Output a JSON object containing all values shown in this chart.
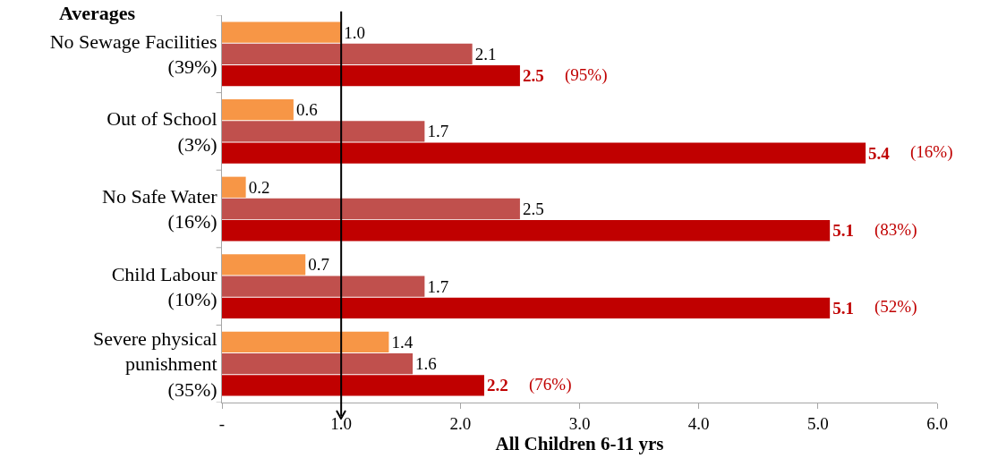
{
  "chart_data": {
    "type": "bar",
    "orientation": "horizontal",
    "title": "Averages",
    "xlabel": "All Children 6-11 yrs",
    "categories": [
      "No Sewage Facilities\n(39%)",
      "Out of School\n(3%)",
      "No Safe Water\n(16%)",
      "Child Labour\n(10%)",
      "Severe physical\npunishment\n(35%)"
    ],
    "series": [
      {
        "color": "#f79646",
        "values": [
          1.0,
          0.6,
          0.2,
          0.7,
          1.4
        ],
        "value_labels": [
          "1.0",
          "0.6",
          "0.2",
          "0.7",
          "1.4"
        ]
      },
      {
        "color": "#c0504d",
        "values": [
          2.1,
          1.7,
          2.5,
          1.7,
          1.6
        ],
        "value_labels": [
          "2.1",
          "1.7",
          "2.5",
          "1.7",
          "1.6"
        ]
      },
      {
        "color": "#c00000",
        "values": [
          2.5,
          5.4,
          5.1,
          5.1,
          2.2
        ],
        "value_labels": [
          "2.5",
          "5.4",
          "5.1",
          "5.1",
          "2.2"
        ]
      }
    ],
    "xlim": [
      0,
      6
    ],
    "xticks": [
      {
        "value": 0,
        "label": "-"
      },
      {
        "value": 1,
        "label": "1.0"
      },
      {
        "value": 2,
        "label": "2.0"
      },
      {
        "value": 3,
        "label": "3.0"
      },
      {
        "value": 4,
        "label": "4.0"
      },
      {
        "value": 5,
        "label": "5.0"
      },
      {
        "value": 6,
        "label": "6.0"
      }
    ],
    "ref_lines": [
      {
        "axis": "x",
        "value": 1,
        "color": "#000000"
      }
    ],
    "annotations": [
      "(95%)",
      "(16%)",
      "(83%)",
      "(52%)",
      "(76%)"
    ]
  }
}
